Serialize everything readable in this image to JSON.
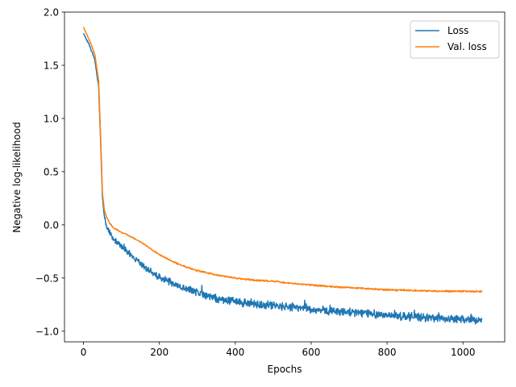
{
  "chart_data": {
    "type": "line",
    "xlabel": "Epochs",
    "ylabel": "Negative log-likelihood",
    "xlim": [
      -50,
      1110
    ],
    "ylim": [
      -1.1,
      2.0
    ],
    "xticks": [
      0,
      200,
      400,
      600,
      800,
      1000
    ],
    "xtick_labels": [
      "0",
      "200",
      "400",
      "600",
      "800",
      "1000"
    ],
    "yticks": [
      -1.0,
      -0.5,
      0.0,
      0.5,
      1.0,
      1.5,
      2.0
    ],
    "ytick_labels": [
      "−1.0",
      "−0.5",
      "0.0",
      "0.5",
      "1.0",
      "1.5",
      "2.0"
    ],
    "grid": false,
    "legend_position": "top-right",
    "series": [
      {
        "name": "Loss",
        "color": "#1f77b4",
        "noise": 0.03,
        "x": [
          0,
          10,
          20,
          30,
          40,
          45,
          50,
          55,
          60,
          70,
          80,
          100,
          120,
          150,
          200,
          250,
          300,
          350,
          400,
          450,
          500,
          550,
          600,
          650,
          700,
          750,
          800,
          850,
          900,
          950,
          1000,
          1050
        ],
        "y": [
          1.8,
          1.73,
          1.65,
          1.55,
          1.3,
          0.8,
          0.25,
          0.08,
          0.0,
          -0.08,
          -0.14,
          -0.2,
          -0.27,
          -0.37,
          -0.49,
          -0.57,
          -0.64,
          -0.69,
          -0.72,
          -0.74,
          -0.76,
          -0.77,
          -0.79,
          -0.81,
          -0.82,
          -0.83,
          -0.85,
          -0.86,
          -0.87,
          -0.88,
          -0.89,
          -0.9
        ]
      },
      {
        "name": "Val. loss",
        "color": "#ff7f0e",
        "noise": 0.006,
        "x": [
          0,
          10,
          20,
          30,
          40,
          45,
          50,
          55,
          60,
          70,
          80,
          100,
          120,
          150,
          200,
          250,
          300,
          350,
          400,
          450,
          500,
          550,
          600,
          650,
          700,
          750,
          800,
          850,
          900,
          950,
          1000,
          1050
        ],
        "y": [
          1.86,
          1.78,
          1.7,
          1.6,
          1.35,
          0.85,
          0.3,
          0.14,
          0.08,
          0.01,
          -0.03,
          -0.07,
          -0.1,
          -0.16,
          -0.28,
          -0.37,
          -0.43,
          -0.47,
          -0.5,
          -0.52,
          -0.53,
          -0.55,
          -0.565,
          -0.58,
          -0.59,
          -0.6,
          -0.61,
          -0.615,
          -0.62,
          -0.625,
          -0.625,
          -0.625
        ]
      }
    ]
  }
}
